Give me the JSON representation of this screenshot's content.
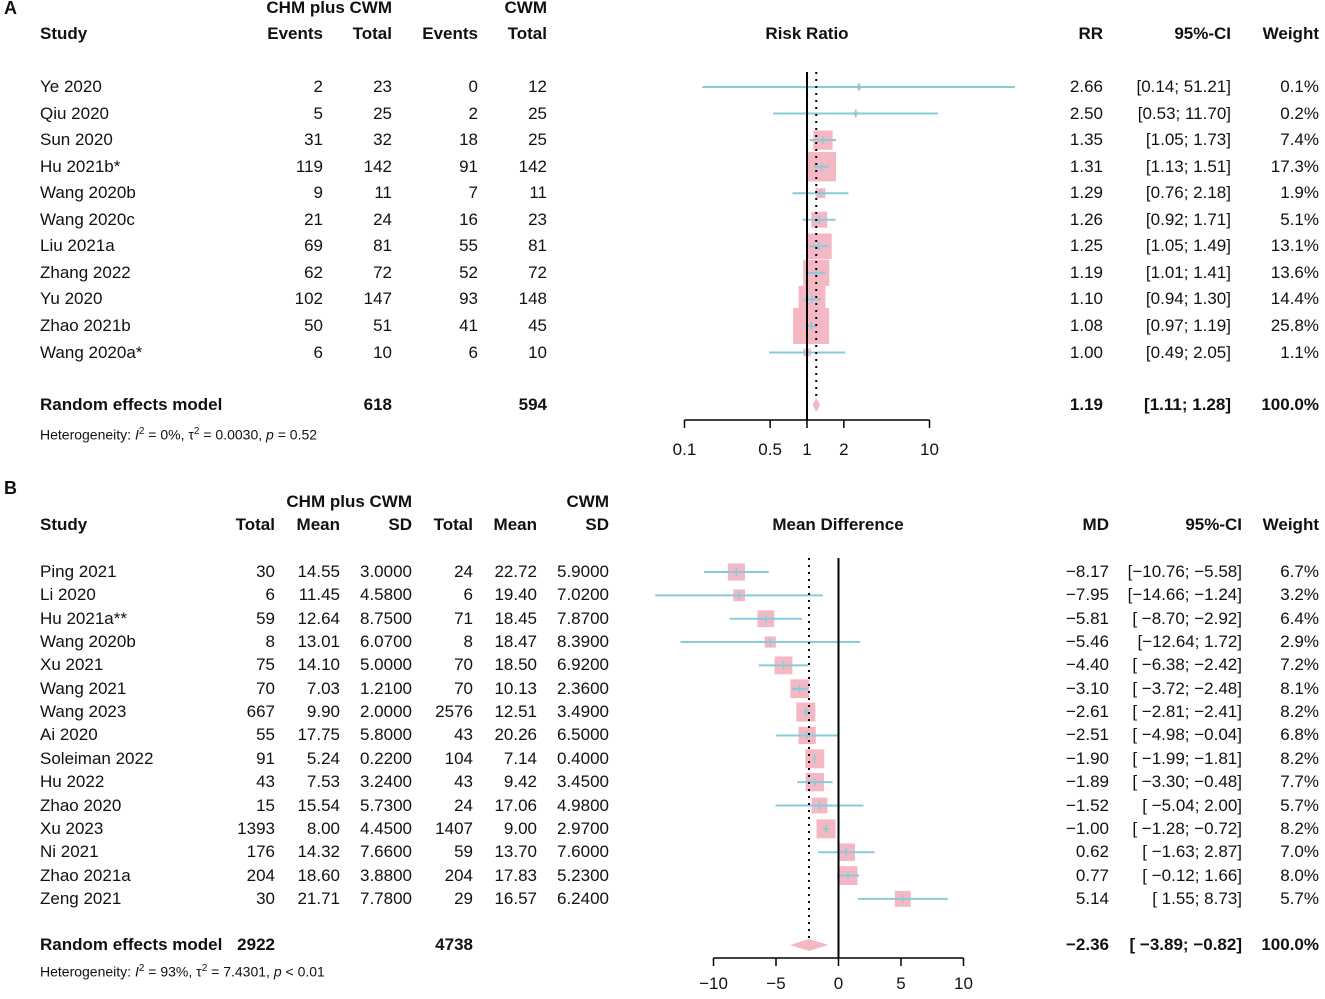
{
  "chart_data": [
    {
      "type": "forest",
      "panel": "A",
      "measure": "Risk Ratio",
      "log_scale": true,
      "xlim": [
        0.1,
        10
      ],
      "ticks": [
        "0.1",
        "0.5",
        "1",
        "2",
        "10"
      ],
      "tick_values": [
        0.1,
        0.5,
        1,
        2,
        10
      ],
      "group1": "CHM plus CWM",
      "group2": "CWM",
      "columns": [
        "Study",
        "Events",
        "Total",
        "Events",
        "Total",
        "RR",
        "95%-CI",
        "Weight"
      ],
      "studies": [
        {
          "study": "Ye 2020",
          "e1": "2",
          "n1": "23",
          "e2": "0",
          "n2": "12",
          "est": 2.66,
          "lo": 0.14,
          "hi": 51.21,
          "w": 0.1,
          "est_s": "2.66",
          "ci_s": "[0.14; 51.21]",
          "w_s": "0.1%"
        },
        {
          "study": "Qiu 2020",
          "e1": "5",
          "n1": "25",
          "e2": "2",
          "n2": "25",
          "est": 2.5,
          "lo": 0.53,
          "hi": 11.7,
          "w": 0.2,
          "est_s": "2.50",
          "ci_s": "[0.53; 11.70]",
          "w_s": "0.2%"
        },
        {
          "study": "Sun 2020",
          "e1": "31",
          "n1": "32",
          "e2": "18",
          "n2": "25",
          "est": 1.35,
          "lo": 1.05,
          "hi": 1.73,
          "w": 7.4,
          "est_s": "1.35",
          "ci_s": "[1.05; 1.73]",
          "w_s": "7.4%"
        },
        {
          "study": "Hu 2021b*",
          "e1": "119",
          "n1": "142",
          "e2": "91",
          "n2": "142",
          "est": 1.31,
          "lo": 1.13,
          "hi": 1.51,
          "w": 17.3,
          "est_s": "1.31",
          "ci_s": "[1.13; 1.51]",
          "w_s": "17.3%"
        },
        {
          "study": "Wang 2020b",
          "e1": "9",
          "n1": "11",
          "e2": "7",
          "n2": "11",
          "est": 1.29,
          "lo": 0.76,
          "hi": 2.18,
          "w": 1.9,
          "est_s": "1.29",
          "ci_s": "[0.76; 2.18]",
          "w_s": "1.9%"
        },
        {
          "study": "Wang 2020c",
          "e1": "21",
          "n1": "24",
          "e2": "16",
          "n2": "23",
          "est": 1.26,
          "lo": 0.92,
          "hi": 1.71,
          "w": 5.1,
          "est_s": "1.26",
          "ci_s": "[0.92; 1.71]",
          "w_s": "5.1%"
        },
        {
          "study": "Liu 2021a",
          "e1": "69",
          "n1": "81",
          "e2": "55",
          "n2": "81",
          "est": 1.25,
          "lo": 1.05,
          "hi": 1.49,
          "w": 13.1,
          "est_s": "1.25",
          "ci_s": "[1.05; 1.49]",
          "w_s": "13.1%"
        },
        {
          "study": "Zhang 2022",
          "e1": "62",
          "n1": "72",
          "e2": "52",
          "n2": "72",
          "est": 1.19,
          "lo": 1.01,
          "hi": 1.41,
          "w": 13.6,
          "est_s": "1.19",
          "ci_s": "[1.01; 1.41]",
          "w_s": "13.6%"
        },
        {
          "study": "Yu 2020",
          "e1": "102",
          "n1": "147",
          "e2": "93",
          "n2": "148",
          "est": 1.1,
          "lo": 0.94,
          "hi": 1.3,
          "w": 14.4,
          "est_s": "1.10",
          "ci_s": "[0.94; 1.30]",
          "w_s": "14.4%"
        },
        {
          "study": "Zhao 2021b",
          "e1": "50",
          "n1": "51",
          "e2": "41",
          "n2": "45",
          "est": 1.08,
          "lo": 0.97,
          "hi": 1.19,
          "w": 25.8,
          "est_s": "1.08",
          "ci_s": "[0.97; 1.19]",
          "w_s": "25.8%"
        },
        {
          "study": "Wang 2020a*",
          "e1": "6",
          "n1": "10",
          "e2": "6",
          "n2": "10",
          "est": 1.0,
          "lo": 0.49,
          "hi": 2.05,
          "w": 1.1,
          "est_s": "1.00",
          "ci_s": "[0.49; 2.05]",
          "w_s": "1.1%"
        }
      ],
      "summary": {
        "label": "Random effects model",
        "n1": "618",
        "n2": "594",
        "est": 1.19,
        "lo": 1.11,
        "hi": 1.28,
        "est_s": "1.19",
        "ci_s": "[1.11; 1.28]",
        "w_s": "100.0%"
      },
      "heterogeneity": {
        "prefix": "Heterogeneity: ",
        "I2": "I",
        "I2_val": " = 0%, ",
        "tau": "τ",
        "tau_val": " = 0.0030, ",
        "p": "p",
        "p_val": " = 0.52",
        "sup": "2"
      }
    },
    {
      "type": "forest",
      "panel": "B",
      "measure": "Mean Difference",
      "log_scale": false,
      "xlim": [
        -10,
        10
      ],
      "ticks": [
        "−10",
        "−5",
        "0",
        "5",
        "10"
      ],
      "tick_values": [
        -10,
        -5,
        0,
        5,
        10
      ],
      "group1": "CHM plus CWM",
      "group2": "CWM",
      "columns": [
        "Study",
        "Total",
        "Mean",
        "SD",
        "Total",
        "Mean",
        "SD",
        "MD",
        "95%-CI",
        "Weight"
      ],
      "studies": [
        {
          "study": "Ping 2021",
          "n1": "30",
          "m1": "14.55",
          "sd1": "3.0000",
          "n2": "24",
          "m2": "22.72",
          "sd2": "5.9000",
          "est": -8.17,
          "lo": -10.76,
          "hi": -5.58,
          "w": 6.7,
          "est_s": "−8.17",
          "ci_s": "[−10.76; −5.58]",
          "w_s": "6.7%"
        },
        {
          "study": "Li 2020",
          "n1": "6",
          "m1": "11.45",
          "sd1": "4.5800",
          "n2": "6",
          "m2": "19.40",
          "sd2": "7.0200",
          "est": -7.95,
          "lo": -14.66,
          "hi": -1.24,
          "w": 3.2,
          "est_s": "−7.95",
          "ci_s": "[−14.66; −1.24]",
          "w_s": "3.2%"
        },
        {
          "study": "Hu 2021a**",
          "n1": "59",
          "m1": "12.64",
          "sd1": "8.7500",
          "n2": "71",
          "m2": "18.45",
          "sd2": "7.8700",
          "est": -5.81,
          "lo": -8.7,
          "hi": -2.92,
          "w": 6.4,
          "est_s": "−5.81",
          "ci_s": "[ −8.70; −2.92]",
          "w_s": "6.4%"
        },
        {
          "study": "Wang 2020b",
          "n1": "8",
          "m1": "13.01",
          "sd1": "6.0700",
          "n2": "8",
          "m2": "18.47",
          "sd2": "8.3900",
          "est": -5.46,
          "lo": -12.64,
          "hi": 1.72,
          "w": 2.9,
          "est_s": "−5.46",
          "ci_s": "[−12.64; 1.72]",
          "w_s": "2.9%"
        },
        {
          "study": "Xu 2021",
          "n1": "75",
          "m1": "14.10",
          "sd1": "5.0000",
          "n2": "70",
          "m2": "18.50",
          "sd2": "6.9200",
          "est": -4.4,
          "lo": -6.38,
          "hi": -2.42,
          "w": 7.2,
          "est_s": "−4.40",
          "ci_s": "[ −6.38; −2.42]",
          "w_s": "7.2%"
        },
        {
          "study": "Wang 2021",
          "n1": "70",
          "m1": "7.03",
          "sd1": "1.2100",
          "n2": "70",
          "m2": "10.13",
          "sd2": "2.3600",
          "est": -3.1,
          "lo": -3.72,
          "hi": -2.48,
          "w": 8.1,
          "est_s": "−3.10",
          "ci_s": "[ −3.72; −2.48]",
          "w_s": "8.1%"
        },
        {
          "study": "Wang 2023",
          "n1": "667",
          "m1": "9.90",
          "sd1": "2.0000",
          "n2": "2576",
          "m2": "12.51",
          "sd2": "3.4900",
          "est": -2.61,
          "lo": -2.81,
          "hi": -2.41,
          "w": 8.2,
          "est_s": "−2.61",
          "ci_s": "[ −2.81; −2.41]",
          "w_s": "8.2%"
        },
        {
          "study": "Ai 2020",
          "n1": "55",
          "m1": "17.75",
          "sd1": "5.8000",
          "n2": "43",
          "m2": "20.26",
          "sd2": "6.5000",
          "est": -2.51,
          "lo": -4.98,
          "hi": -0.04,
          "w": 6.8,
          "est_s": "−2.51",
          "ci_s": "[ −4.98; −0.04]",
          "w_s": "6.8%"
        },
        {
          "study": "Soleiman 2022",
          "n1": "91",
          "m1": "5.24",
          "sd1": "0.2200",
          "n2": "104",
          "m2": "7.14",
          "sd2": "0.4000",
          "est": -1.9,
          "lo": -1.99,
          "hi": -1.81,
          "w": 8.2,
          "est_s": "−1.90",
          "ci_s": "[ −1.99; −1.81]",
          "w_s": "8.2%"
        },
        {
          "study": "Hu 2022",
          "n1": "43",
          "m1": "7.53",
          "sd1": "3.2400",
          "n2": "43",
          "m2": "9.42",
          "sd2": "3.4500",
          "est": -1.89,
          "lo": -3.3,
          "hi": -0.48,
          "w": 7.7,
          "est_s": "−1.89",
          "ci_s": "[ −3.30; −0.48]",
          "w_s": "7.7%"
        },
        {
          "study": "Zhao 2020",
          "n1": "15",
          "m1": "15.54",
          "sd1": "5.7300",
          "n2": "24",
          "m2": "17.06",
          "sd2": "4.9800",
          "est": -1.52,
          "lo": -5.04,
          "hi": 2.0,
          "w": 5.7,
          "est_s": "−1.52",
          "ci_s": "[ −5.04; 2.00]",
          "w_s": "5.7%"
        },
        {
          "study": "Xu 2023",
          "n1": "1393",
          "m1": "8.00",
          "sd1": "4.4500",
          "n2": "1407",
          "m2": "9.00",
          "sd2": "2.9700",
          "est": -1.0,
          "lo": -1.28,
          "hi": -0.72,
          "w": 8.2,
          "est_s": "−1.00",
          "ci_s": "[ −1.28; −0.72]",
          "w_s": "8.2%"
        },
        {
          "study": "Ni 2021",
          "n1": "176",
          "m1": "14.32",
          "sd1": "7.6600",
          "n2": "59",
          "m2": "13.70",
          "sd2": "7.6000",
          "est": 0.62,
          "lo": -1.63,
          "hi": 2.87,
          "w": 7.0,
          "est_s": "0.62",
          "ci_s": "[ −1.63; 2.87]",
          "w_s": "7.0%"
        },
        {
          "study": "Zhao 2021a",
          "n1": "204",
          "m1": "18.60",
          "sd1": "3.8800",
          "n2": "204",
          "m2": "17.83",
          "sd2": "5.2300",
          "est": 0.77,
          "lo": -0.12,
          "hi": 1.66,
          "w": 8.0,
          "est_s": "0.77",
          "ci_s": "[ −0.12; 1.66]",
          "w_s": "8.0%"
        },
        {
          "study": "Zeng 2021",
          "n1": "30",
          "m1": "21.71",
          "sd1": "7.7800",
          "n2": "29",
          "m2": "16.57",
          "sd2": "6.2400",
          "est": 5.14,
          "lo": 1.55,
          "hi": 8.73,
          "w": 5.7,
          "est_s": "5.14",
          "ci_s": "[ 1.55; 8.73]",
          "w_s": "5.7%"
        }
      ],
      "summary": {
        "label": "Random effects model",
        "n1": "2922",
        "n2": "4738",
        "est": -2.36,
        "lo": -3.89,
        "hi": -0.82,
        "est_s": "−2.36",
        "ci_s": "[ −3.89; −0.82]",
        "w_s": "100.0%"
      },
      "heterogeneity": {
        "prefix": "Heterogeneity: ",
        "I2": "I",
        "I2_val": " = 93%, ",
        "tau": "τ",
        "tau_val": " = 7.4301, ",
        "p": "p",
        "p_val": " < 0.01",
        "sup": "2"
      }
    }
  ]
}
